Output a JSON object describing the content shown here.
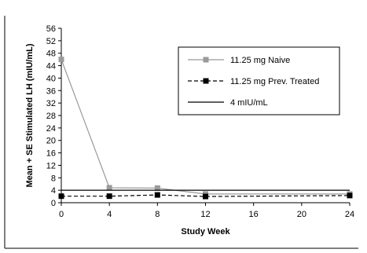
{
  "chart_data": {
    "type": "line",
    "xlabel": "Study Week",
    "ylabel": "Mean + SE Stimulated LH (mIU/mL)",
    "x_ticks": [
      0,
      4,
      8,
      12,
      16,
      20,
      24
    ],
    "y_ticks": [
      0,
      4,
      8,
      12,
      16,
      20,
      24,
      28,
      32,
      36,
      40,
      44,
      48,
      52,
      56
    ],
    "xlim": [
      0,
      24
    ],
    "ylim": [
      0,
      56
    ],
    "grid": false,
    "legend_position": "top-right",
    "series": [
      {
        "name": "11.25 mg Naive",
        "x": [
          0,
          4,
          8,
          12,
          24
        ],
        "y": [
          46,
          4.8,
          4.7,
          2.8,
          2.8
        ],
        "color": "#9a9a9a",
        "line_style": "solid",
        "marker": "square"
      },
      {
        "name": "11.25 mg Prev. Treated",
        "x": [
          0,
          4,
          8,
          12,
          24
        ],
        "y": [
          2.1,
          2.1,
          2.5,
          2.0,
          2.3
        ],
        "color": "#000000",
        "line_style": "dashed",
        "marker": "square"
      },
      {
        "name": "4 mIU/mL",
        "x": [
          0,
          24
        ],
        "y": [
          4,
          4
        ],
        "color": "#000000",
        "line_style": "solid",
        "marker": "none"
      }
    ]
  }
}
